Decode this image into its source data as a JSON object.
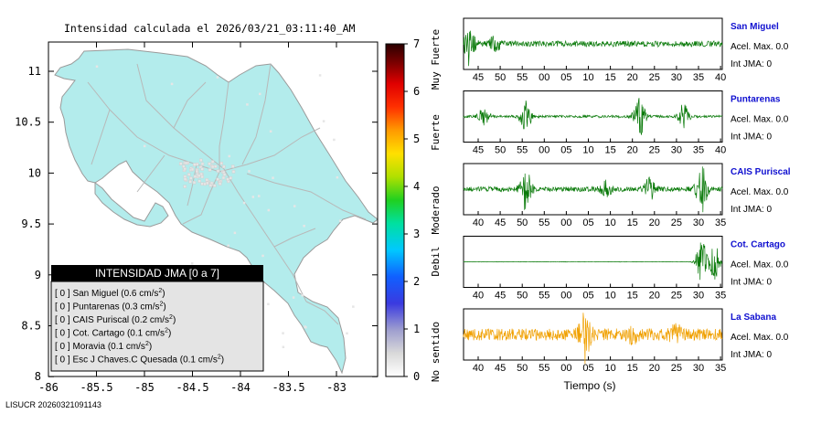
{
  "title": "Intensidad calculada el 2026/03/21_03:11:40_AM",
  "footer_id": "LISUCR 20260321091143",
  "map": {
    "x_ticks": [
      "-86",
      "-85.5",
      "-85",
      "-84.5",
      "-84",
      "-83.5",
      "-83"
    ],
    "y_ticks": [
      "11",
      "10.5",
      "10",
      "9.5",
      "9",
      "8.5",
      "8"
    ],
    "land_color": "#b3ecec",
    "road_color": "#b8b8b8"
  },
  "colorbar": {
    "ticks": [
      "0",
      "1",
      "2",
      "3",
      "4",
      "5",
      "6",
      "7"
    ],
    "labels": [
      "No sentido",
      "Debil",
      "Moderado",
      "Fuerte",
      "Muy Fuerte"
    ]
  },
  "legend": {
    "title": "INTENSIDAD JMA [0 a 7]",
    "rows": [
      {
        "badge": "[ 0 ]",
        "name": "San Miguel",
        "value": "(0.6 cm/s",
        "sup": "2",
        "close": ")"
      },
      {
        "badge": "[ 0 ]",
        "name": "Puntarenas",
        "value": "(0.3 cm/s",
        "sup": "2",
        "close": ")"
      },
      {
        "badge": "[ 0 ]",
        "name": "CAIS Puriscal",
        "value": "(0.2 cm/s",
        "sup": "2",
        "close": ")"
      },
      {
        "badge": "[ 0 ]",
        "name": "Cot. Cartago",
        "value": "(0.1 cm/s",
        "sup": "2",
        "close": ")"
      },
      {
        "badge": "[ 0 ]",
        "name": "Moravia",
        "value": "(0.1 cm/s",
        "sup": "2",
        "close": ")"
      },
      {
        "badge": "[ 0 ]",
        "name": "Esc J Chaves.C Quesada",
        "value": "(0.1 cm/s",
        "sup": "2",
        "close": ")"
      }
    ]
  },
  "waveforms": [
    {
      "station": "San Miguel",
      "accel": "Acel. Max. 0.0",
      "int": "Int JMA: 0",
      "color": "#0a7a0a",
      "ticks": [
        "45",
        "50",
        "55",
        "00",
        "05",
        "10",
        "15",
        "20",
        "25",
        "30",
        "35",
        "40"
      ],
      "bursts": [
        [
          0.02,
          0.9
        ],
        [
          0.12,
          0.35
        ]
      ],
      "base": 0.12,
      "seed": 3
    },
    {
      "station": "Puntarenas",
      "accel": "Acel. Max. 0.0",
      "int": "Int JMA: 0",
      "color": "#0a7a0a",
      "ticks": [
        "45",
        "50",
        "55",
        "00",
        "05",
        "10",
        "15",
        "20",
        "25",
        "30",
        "35",
        "40"
      ],
      "bursts": [
        [
          0.08,
          0.45
        ],
        [
          0.24,
          0.7
        ],
        [
          0.68,
          0.95
        ],
        [
          0.85,
          0.5
        ]
      ],
      "base": 0.05,
      "seed": 7
    },
    {
      "station": "CAIS Puriscal",
      "accel": "Acel. Max. 0.0",
      "int": "Int JMA: 0",
      "color": "#0a7a0a",
      "ticks": [
        "40",
        "45",
        "50",
        "55",
        "00",
        "05",
        "10",
        "15",
        "20",
        "25",
        "30",
        "35"
      ],
      "bursts": [
        [
          0.24,
          0.95
        ],
        [
          0.55,
          0.35
        ],
        [
          0.72,
          0.45
        ],
        [
          0.92,
          0.95
        ]
      ],
      "base": 0.1,
      "seed": 11
    },
    {
      "station": "Cot. Cartago",
      "accel": "Acel. Max. 0.0",
      "int": "Int JMA: 0",
      "color": "#0a7a0a",
      "ticks": [
        "40",
        "45",
        "50",
        "55",
        "00",
        "05",
        "10",
        "15",
        "20",
        "25",
        "30",
        "35"
      ],
      "bursts": [
        [
          0.92,
          1.0
        ],
        [
          0.97,
          0.8
        ]
      ],
      "base": 0.01,
      "seed": 13
    },
    {
      "station": "La Sabana",
      "accel": "Acel. Max. 0.0",
      "int": "Int JMA: 0",
      "color": "#f0a000",
      "ticks": [
        "40",
        "45",
        "50",
        "55",
        "00",
        "05",
        "10",
        "15",
        "20",
        "25",
        "30",
        "35"
      ],
      "bursts": [
        [
          0.47,
          1.0
        ],
        [
          0.65,
          0.3
        ],
        [
          0.82,
          0.3
        ]
      ],
      "base": 0.25,
      "seed": 17
    }
  ],
  "xlabel": "Tiempo (s)"
}
